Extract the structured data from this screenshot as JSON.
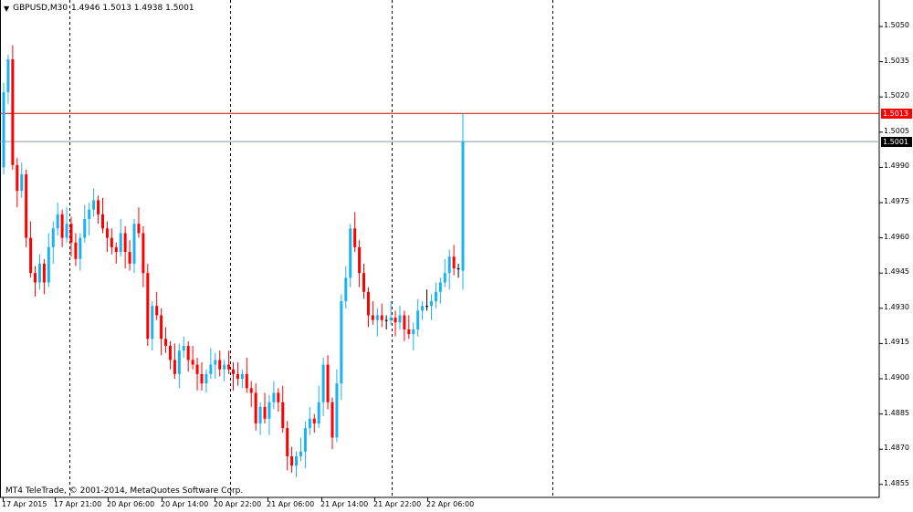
{
  "header": {
    "menu_icon": "triangle-down-icon",
    "symbol": "GBPUSD,M30",
    "ohlc": "1.4946 1.5013 1.4938 1.5001"
  },
  "copyright": "MT4 TeleTrade, © 2001-2014, MetaQuotes Software Corp.",
  "price_tags": {
    "ask": {
      "label": "1.5013",
      "color": "#ff0000"
    },
    "bid": {
      "label": "1.5001",
      "color": "#000000"
    }
  },
  "colors": {
    "bull": "#1ab2f0",
    "bear": "#ff0000",
    "doji": "#000000",
    "grid": "#000000"
  },
  "chart_data": {
    "type": "candlestick",
    "title": "GBPUSD,M30",
    "ylim": [
      1.4845,
      1.506
    ],
    "y_ticks": [
      "1.5050",
      "1.5035",
      "1.5020",
      "1.5005",
      "1.4990",
      "1.4975",
      "1.4960",
      "1.4945",
      "1.4930",
      "1.4915",
      "1.4900",
      "1.4885",
      "1.4870",
      "1.4855"
    ],
    "x_ticks": [
      "17 Apr 2015",
      "17 Apr 21:00",
      "20 Apr 06:00",
      "20 Apr 14:00",
      "20 Apr 22:00",
      "21 Apr 06:00",
      "21 Apr 14:00",
      "21 Apr 22:00",
      "22 Apr 06:00"
    ],
    "first_open": 1.499,
    "close": [
      1.5022,
      1.5036,
      1.4991,
      1.498,
      1.4987,
      1.496,
      1.4945,
      1.4941,
      1.4949,
      1.4941,
      1.4956,
      1.4964,
      1.497,
      1.496,
      1.4966,
      1.4958,
      1.4951,
      1.496,
      1.4968,
      1.4972,
      1.4976,
      1.497,
      1.4964,
      1.496,
      1.4956,
      1.4954,
      1.4962,
      1.4954,
      1.4949,
      1.4966,
      1.4962,
      1.4945,
      1.4917,
      1.4931,
      1.4927,
      1.4917,
      1.4914,
      1.4908,
      1.4902,
      1.4912,
      1.4914,
      1.4908,
      1.4906,
      1.4902,
      1.4898,
      1.4902,
      1.4906,
      1.4908,
      1.4904,
      1.4906,
      1.4904,
      1.4902,
      1.49,
      1.4902,
      1.4896,
      1.4894,
      1.4881,
      1.4888,
      1.4883,
      1.489,
      1.4894,
      1.489,
      1.4879,
      1.4867,
      1.4863,
      1.4867,
      1.4869,
      1.4879,
      1.4883,
      1.4881,
      1.489,
      1.4906,
      1.489,
      1.4875,
      1.4898,
      1.4933,
      1.4943,
      1.4964,
      1.4956,
      1.4945,
      1.4937,
      1.4927,
      1.4925,
      1.4927,
      1.4925,
      1.4925,
      1.4926,
      1.4924,
      1.4927,
      1.4921,
      1.4919,
      1.4921,
      1.4929,
      1.4931,
      1.4931,
      1.4933,
      1.4937,
      1.4941,
      1.4945,
      1.4952,
      1.4947,
      1.4947,
      1.5001
    ],
    "last_bar": {
      "open": 1.4946,
      "high": 1.5013,
      "low": 1.4938,
      "close": 1.5001
    },
    "ask_line": 1.5013,
    "bid_line": 1.5001,
    "period_separators": true
  }
}
